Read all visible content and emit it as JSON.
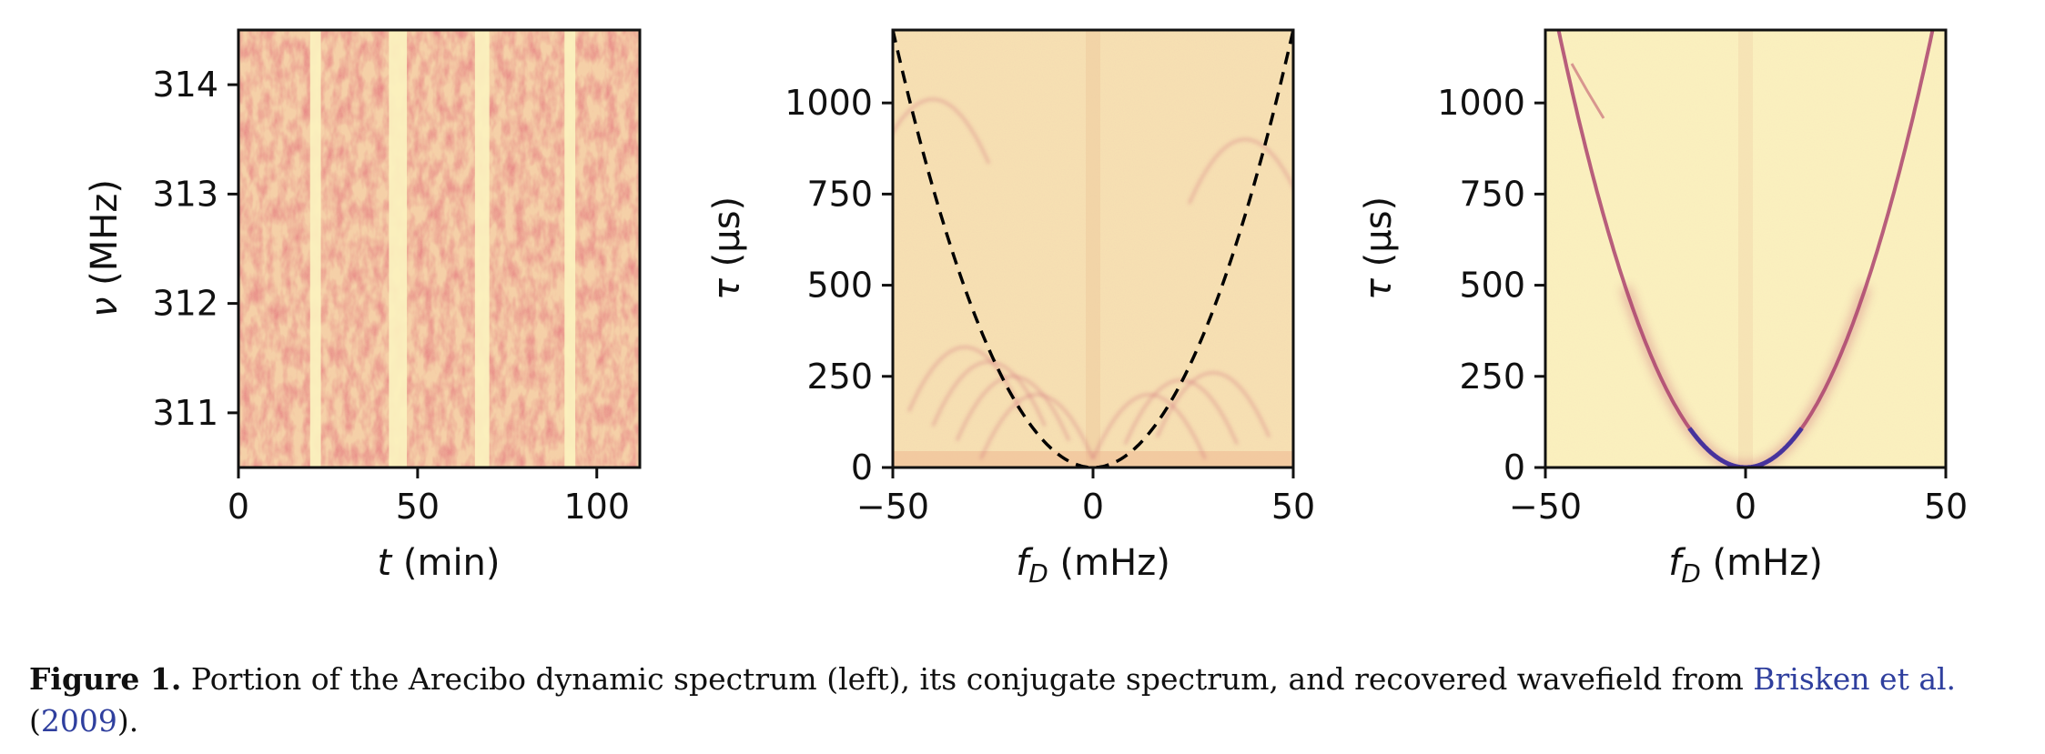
{
  "panels": [
    {
      "id": "dynamic-spectrum",
      "xlabel": {
        "sym": "t",
        "unit": " (min)"
      },
      "ylabel": {
        "sym": "ν",
        "unit": " (MHz)"
      },
      "xticks": [
        "0",
        "50",
        "100"
      ],
      "yticks": [
        "311",
        "312",
        "313",
        "314"
      ]
    },
    {
      "id": "conjugate-spectrum",
      "xlabel": {
        "sym": "f",
        "sub": "D",
        "unit": " (mHz)"
      },
      "ylabel": {
        "sym": "τ",
        "unit": " (μs)"
      },
      "xticks": [
        "−50",
        "0",
        "50"
      ],
      "yticks": [
        "0",
        "250",
        "500",
        "750",
        "1000"
      ]
    },
    {
      "id": "recovered-wavefield",
      "xlabel": {
        "sym": "f",
        "sub": "D",
        "unit": " (mHz)"
      },
      "ylabel": {
        "sym": "τ",
        "unit": " (μs)"
      },
      "xticks": [
        "−50",
        "0",
        "50"
      ],
      "yticks": [
        "0",
        "250",
        "500",
        "750",
        "1000"
      ]
    }
  ],
  "chart_data": [
    {
      "type": "heatmap",
      "xlim": [
        0,
        112
      ],
      "ylim": [
        310.5,
        314.5
      ],
      "x_tick_values": [
        0,
        50,
        100
      ],
      "y_tick_values": [
        311,
        312,
        313,
        314
      ],
      "data_gaps_t": [
        [
          20,
          23
        ],
        [
          42,
          47
        ],
        [
          66,
          70
        ],
        [
          91,
          94
        ]
      ],
      "colormap": [
        "#fbeec0",
        "#efaf88",
        "#c43c3c"
      ]
    },
    {
      "type": "heatmap",
      "xlim": [
        -50,
        50
      ],
      "ylim": [
        0,
        1200
      ],
      "x_tick_values": [
        -50,
        0,
        50
      ],
      "y_tick_values": [
        0,
        250,
        500,
        750,
        1000
      ],
      "overlay_curve": {
        "style": "dashed",
        "color": "#000000",
        "eta": 0.48
      },
      "colormap": [
        "#f8e8b6",
        "#e9a07e",
        "#8a2c5c"
      ]
    },
    {
      "type": "heatmap",
      "xlim": [
        -50,
        50
      ],
      "ylim": [
        0,
        1200
      ],
      "x_tick_values": [
        -50,
        0,
        50
      ],
      "y_tick_values": [
        0,
        250,
        500,
        750,
        1000
      ],
      "arc_eta": 0.55,
      "colormap": [
        "#fbf4bd",
        "#e07d72",
        "#3a2a9a"
      ]
    }
  ],
  "caption": {
    "label": "Figure 1.",
    "text": " Portion of the Arecibo dynamic spectrum (left), its conjugate spectrum, and recovered wavefield from ",
    "cite_authors": "Brisken et al.",
    "cite_year": "2009",
    "end": ")."
  }
}
